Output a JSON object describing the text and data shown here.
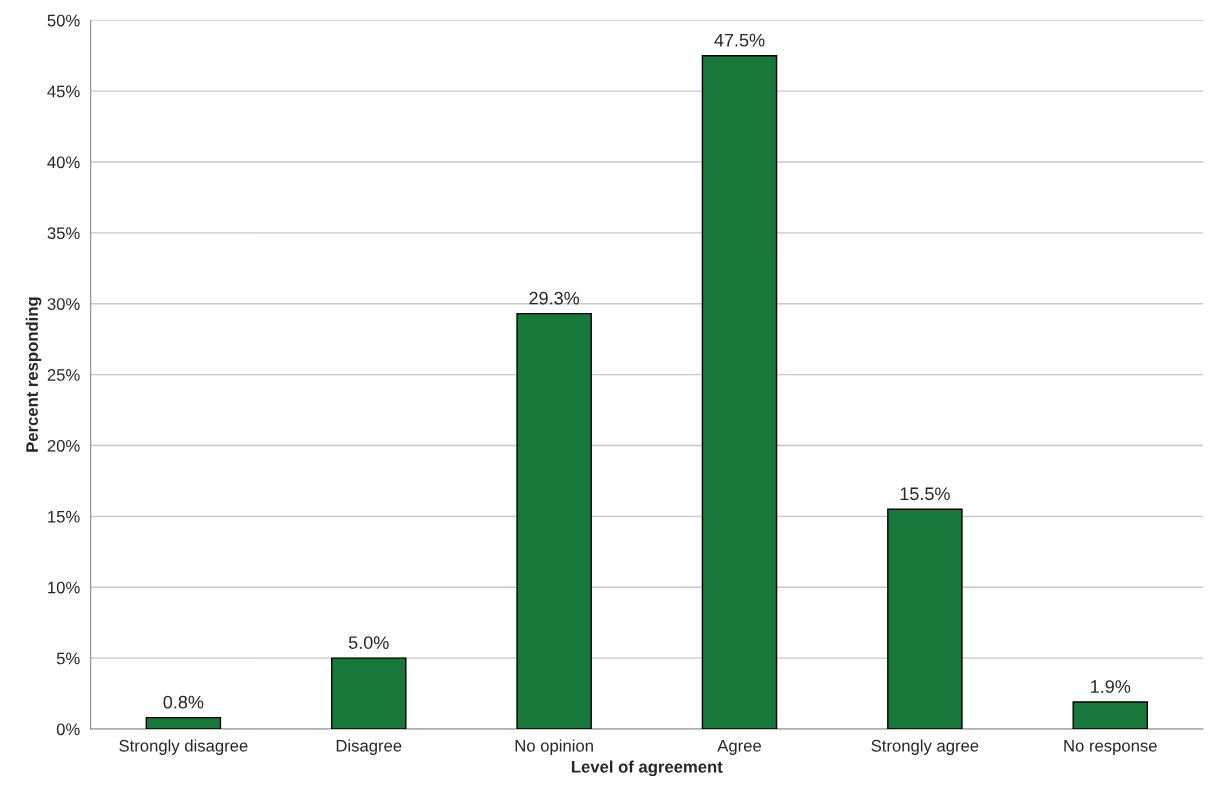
{
  "chart_data": {
    "type": "bar",
    "xlabel": "Level of agreement",
    "ylabel": "Percent responding",
    "categories": [
      "Strongly disagree",
      "Disagree",
      "No opinion",
      "Agree",
      "Strongly agree",
      "No response"
    ],
    "values": [
      0.8,
      5.0,
      29.3,
      47.5,
      15.5,
      1.9
    ],
    "value_labels": [
      "0.8%",
      "5.0%",
      "29.3%",
      "47.5%",
      "15.5%",
      "1.9%"
    ],
    "color": "#17783a",
    "ylim": [
      0,
      50
    ],
    "yticks": [
      {
        "value": 0,
        "label": "0%"
      },
      {
        "value": 5,
        "label": "5%"
      },
      {
        "value": 10,
        "label": "10%"
      },
      {
        "value": 15,
        "label": "15%"
      },
      {
        "value": 20,
        "label": "20%"
      },
      {
        "value": 25,
        "label": "25%"
      },
      {
        "value": 30,
        "label": "30%"
      },
      {
        "value": 35,
        "label": "35%"
      },
      {
        "value": 40,
        "label": "40%"
      },
      {
        "value": 45,
        "label": "45%"
      },
      {
        "value": 50,
        "label": "50%"
      }
    ],
    "grid": "y",
    "legend": false
  }
}
